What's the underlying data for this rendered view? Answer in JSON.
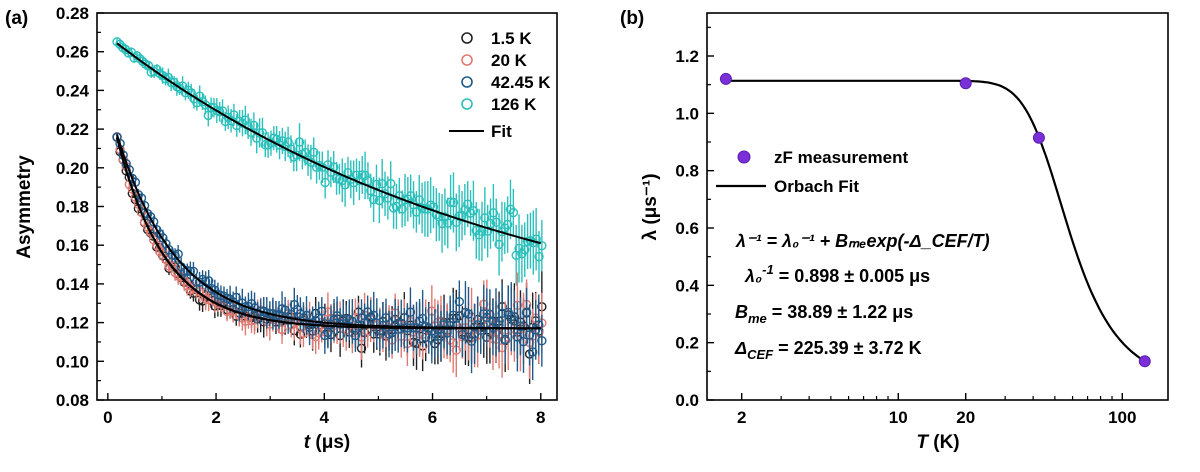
{
  "chart_data": [
    {
      "panel_label": "(a)",
      "type": "scatter",
      "xlabel_italic": "t",
      "xlabel_rest": " (μs)",
      "ylabel": "Asymmetry",
      "xlim": [
        -0.2,
        8.3
      ],
      "ylim": [
        0.08,
        0.28
      ],
      "xticks": [
        0,
        2,
        4,
        6,
        8
      ],
      "yticks": [
        0.08,
        0.1,
        0.12,
        0.14,
        0.16,
        0.18,
        0.2,
        0.22,
        0.24,
        0.26,
        0.28
      ],
      "legend": "top-right",
      "series": [
        {
          "name": "1.5 K",
          "color": "#222222",
          "model": {
            "A0": 0.236,
            "Ainf": 0.117,
            "lambda": 1.113
          }
        },
        {
          "name": "20 K",
          "color": "#e07a72",
          "model": {
            "A0": 0.236,
            "Ainf": 0.117,
            "lambda": 1.105
          }
        },
        {
          "name": "42.45 K",
          "color": "#1f5a8a",
          "model": {
            "A0": 0.234,
            "Ainf": 0.117,
            "lambda": 0.917
          }
        },
        {
          "name": "126 K",
          "color": "#2bc0bc",
          "model": {
            "A0": 0.268,
            "Ainf": 0.106,
            "lambda": 0.135
          }
        }
      ],
      "fit": {
        "name": "Fit",
        "color": "#000000"
      }
    },
    {
      "panel_label": "(b)",
      "type": "scatter",
      "xlabel_italic": "T",
      "xlabel_rest": " (K)",
      "ylabel": "λ (μs⁻¹)",
      "xscale": "log",
      "xlim": [
        1.4,
        160
      ],
      "ylim": [
        0.0,
        1.35
      ],
      "xticks": [
        2,
        10,
        20,
        100
      ],
      "yticks": [
        0.0,
        0.2,
        0.4,
        0.6,
        0.8,
        1.0,
        1.2
      ],
      "legend": "center-left",
      "series": [
        {
          "name": "zF measurement",
          "color": "#7b2fd6",
          "x": [
            1.7,
            20,
            42.45,
            126
          ],
          "y": [
            1.12,
            1.105,
            0.915,
            0.135
          ]
        }
      ],
      "fit": {
        "name": "Orbach Fit",
        "color": "#000000",
        "lambda0_inv": 0.898,
        "Bme": 38.89,
        "dCEF": 225.39
      },
      "annotations": {
        "eq1": "λ⁻¹ = λ₀⁻¹ + Bₘₑexp(-Δ_CEF/T)",
        "eq2_prefix": "λ₀",
        "eq2_sup": "-1",
        "eq2_rest": " = 0.898 ± 0.005 μs",
        "eq3_prefix": "B",
        "eq3_sub": "me",
        "eq3_rest": " = 38.89 ± 1.22 μs",
        "eq4_prefix": "Δ",
        "eq4_sub": "CEF",
        "eq4_rest": " = 225.39 ± 3.72 K"
      }
    }
  ]
}
